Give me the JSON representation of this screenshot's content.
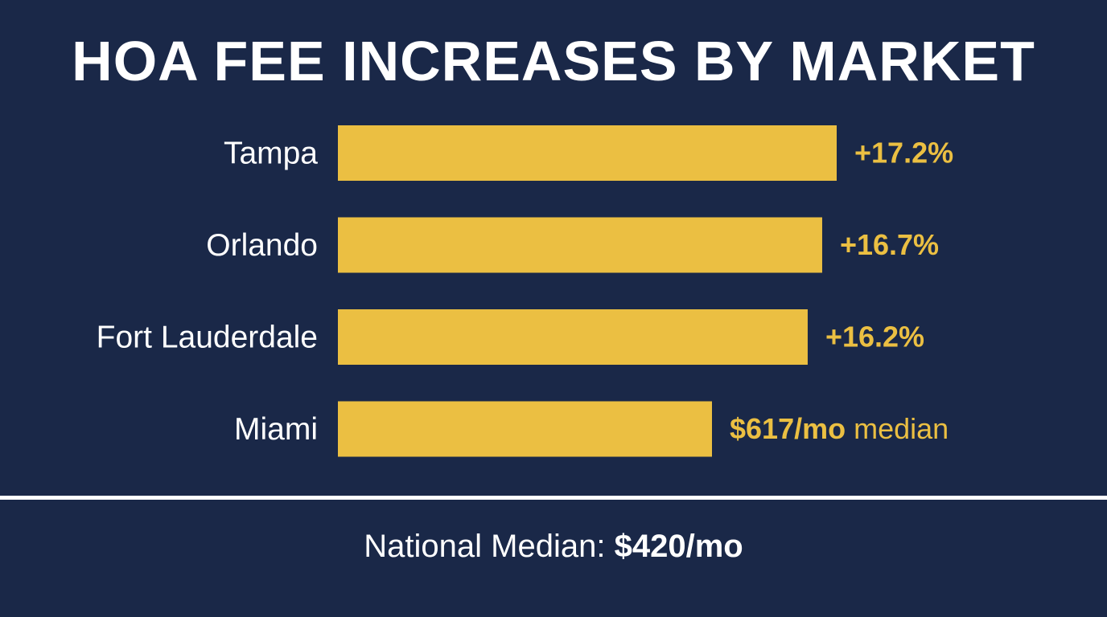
{
  "colors": {
    "background": "#1a2848",
    "bar": "#ebbf42",
    "value_text": "#ebbf42",
    "label_text": "#ffffff"
  },
  "chart_data": {
    "type": "bar",
    "orientation": "horizontal",
    "title": "HOA FEE INCREASES BY MARKET",
    "categories": [
      "Tampa",
      "Orlando",
      "Fort Lauderdale",
      "Miami"
    ],
    "values": [
      17.2,
      16.7,
      16.2,
      12.9
    ],
    "value_unit": "% increase (Miami bar length estimated; not labeled)",
    "data_labels": [
      {
        "bold": "+17.2%",
        "rest": ""
      },
      {
        "bold": "+16.7%",
        "rest": ""
      },
      {
        "bold": "+16.2%",
        "rest": ""
      },
      {
        "bold": "$617/mo",
        "rest": " median"
      }
    ],
    "xlim": [
      0,
      17.2
    ],
    "grid": false,
    "legend": "none"
  },
  "footer": {
    "label": "National Median: ",
    "value": "$420/mo"
  }
}
